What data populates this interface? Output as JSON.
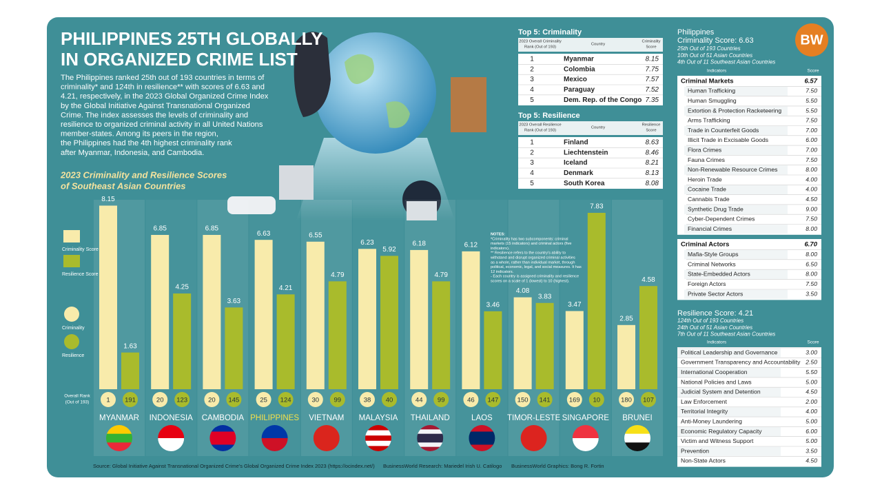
{
  "header": {
    "title": [
      "PHILIPPINES 25TH GLOBALLY",
      "IN ORGANIZED CRIME LIST"
    ],
    "intro": [
      "The Philippines ranked 25th out of 193 countries in terms of",
      "criminality* and 124th in resilience** with scores of 6.63 and",
      "4.21, respectively, in the 2023 Global Organized Crime Index",
      "by the Global Initiative Against Transnational Organized",
      "Crime. The index assesses the levels of criminality and",
      "resilience to organized criminal activity in all United Nations",
      "member-states. Among its peers in the region,",
      "the Philippines had the 4th highest criminality rank",
      "after Myanmar, Indonesia, and Cambodia."
    ],
    "logo": "BW"
  },
  "chart_data": {
    "type": "bar",
    "title": [
      "2023 Criminality and Resilience Scores",
      "of Southeast Asian Countries"
    ],
    "categories": [
      "MYANMAR",
      "INDONESIA",
      "CAMBODIA",
      "PHILIPPINES",
      "VIETNAM",
      "MALAYSIA",
      "THAILAND",
      "LAOS",
      "TIMOR-LESTE",
      "SINGAPORE",
      "BRUNEI"
    ],
    "highlight_index": 3,
    "series": [
      {
        "name": "Criminality Score",
        "color": "#f8ebab",
        "values": [
          8.15,
          6.85,
          6.85,
          6.63,
          6.55,
          6.23,
          6.18,
          6.12,
          4.08,
          3.47,
          2.85
        ]
      },
      {
        "name": "Resilience Score",
        "color": "#a9bb2c",
        "values": [
          1.63,
          4.25,
          3.63,
          4.21,
          4.79,
          5.92,
          4.79,
          3.46,
          3.83,
          7.83,
          4.58
        ]
      }
    ],
    "ranks": {
      "label": [
        "Overall Rank",
        "(Out of 193)"
      ],
      "series": [
        {
          "name": "Criminality",
          "color": "#f8ebab",
          "values": [
            1,
            20,
            20,
            25,
            30,
            38,
            44,
            46,
            150,
            169,
            180
          ]
        },
        {
          "name": "Resilience",
          "color": "#a9bb2c",
          "values": [
            191,
            123,
            145,
            124,
            99,
            40,
            99,
            147,
            141,
            10,
            107
          ]
        }
      ]
    }
  },
  "notes": [
    "NOTES:",
    "*Criminality has two subcomponents: criminal",
    "markets (15 indicators) and criminal actors (five",
    "indicators).",
    "** Resilience refers to the country's ability to",
    "withstand and disrupt organized criminal activities",
    "as a whole, rather than individual market, through",
    "political, economic, legal, and social measures. It has",
    "12 indicators.",
    "- Each country is assigned criminality and resilience",
    "scores on a scale of 1 (lowest) to 10 (highest)."
  ],
  "top_criminality": {
    "title": "Top 5: Criminality",
    "columns": [
      [
        "2023 Overall Criminality",
        "Rank (Out of 193)"
      ],
      [
        "Country"
      ],
      [
        "Criminality",
        "Score"
      ]
    ],
    "rows": [
      [
        1,
        "Myanmar",
        8.15
      ],
      [
        2,
        "Colombia",
        7.75
      ],
      [
        3,
        "Mexico",
        7.57
      ],
      [
        4,
        "Paraguay",
        7.52
      ],
      [
        5,
        "Dem. Rep. of the Congo",
        7.35
      ]
    ]
  },
  "top_resilience": {
    "title": "Top 5: Resilience",
    "columns": [
      [
        "2023 Overall Resilience",
        "Rank (Out of 193)"
      ],
      [
        "Country"
      ],
      [
        "Resilience",
        "Score"
      ]
    ],
    "rows": [
      [
        1,
        "Finland",
        8.63
      ],
      [
        2,
        "Liechtenstein",
        8.46
      ],
      [
        3,
        "Iceland",
        8.21
      ],
      [
        4,
        "Denmark",
        8.13
      ],
      [
        5,
        "South Korea",
        8.08
      ]
    ]
  },
  "philippines": {
    "title": "Philippines",
    "criminality_score": "Criminality Score: 6.63",
    "criminality_ranks": [
      "25th Out of 193 Countries",
      "10th Out of 51 Asian Countries",
      "4th Out of 11 Southeast Asian Countries"
    ],
    "columns": [
      "Indicators",
      "Score"
    ],
    "criminal_markets": {
      "heading": [
        "Criminal Markets",
        "6.57"
      ],
      "rows": [
        [
          "Human Trafficking",
          "7.50"
        ],
        [
          "Human Smuggling",
          "5.50"
        ],
        [
          "Extortion & Protection Racketeering",
          "5.50"
        ],
        [
          "Arms Trafficking",
          "7.50"
        ],
        [
          "Trade in Counterfeit Goods",
          "7.00"
        ],
        [
          "Illicit Trade in Excisable Goods",
          "6.00"
        ],
        [
          "Flora Crimes",
          "7.00"
        ],
        [
          "Fauna Crimes",
          "7.50"
        ],
        [
          "Non-Renewable  Resource Crimes",
          "8.00"
        ],
        [
          "Heroin Trade",
          "4.00"
        ],
        [
          "Cocaine Trade",
          "4.00"
        ],
        [
          "Cannabis Trade",
          "4.50"
        ],
        [
          "Synthetic Drug Trade",
          "9.00"
        ],
        [
          "Cyber-Dependent Crimes",
          "7.50"
        ],
        [
          "Financial Crimes",
          "8.00"
        ]
      ]
    },
    "criminal_actors": {
      "heading": [
        "Criminal Actors",
        "6.70"
      ],
      "rows": [
        [
          "Mafia-Style Groups",
          "8.00"
        ],
        [
          "Criminal Networks",
          "6.50"
        ],
        [
          "State-Embedded Actors",
          "8.00"
        ],
        [
          "Foreign Actors",
          "7.50"
        ],
        [
          "Private Sector Actors",
          "3.50"
        ]
      ]
    },
    "resilience_score": "Resilience Score: 4.21",
    "resilience_ranks": [
      "124th Out of 193 Countries",
      "24th Out of 51 Asian Countries",
      "7th Out of 11 Southeast Asian Countries"
    ],
    "resilience_columns": [
      "Indicators",
      "Score"
    ],
    "resilience": {
      "rows": [
        [
          "Political Leadership and Governance",
          "3.00"
        ],
        [
          "Government Transparency and Accountability",
          "2.50"
        ],
        [
          "International Cooperation",
          "5.50"
        ],
        [
          "National Policies and Laws",
          "5.00"
        ],
        [
          "Judicial System and Detention",
          "4.50"
        ],
        [
          "Law Enforcement",
          "2.00"
        ],
        [
          "Territorial Integrity",
          "4.00"
        ],
        [
          "Anti-Money Laundering",
          "5.00"
        ],
        [
          "Economic Regulatory Capacity",
          "6.00"
        ],
        [
          "Victim and Witness Support",
          "5.00"
        ],
        [
          "Prevention",
          "3.50"
        ],
        [
          "Non-State Actors",
          "4.50"
        ]
      ]
    }
  },
  "footer": [
    "Source: Global Initiative Against Transnational Organized Crime's Global Organized Crime Index 2023 (https://ocindex.net/)",
    "BusinessWorld Research: Mariedel Irish U. Catilogo",
    "BusinessWorld Graphics: Bong R. Fortin"
  ]
}
